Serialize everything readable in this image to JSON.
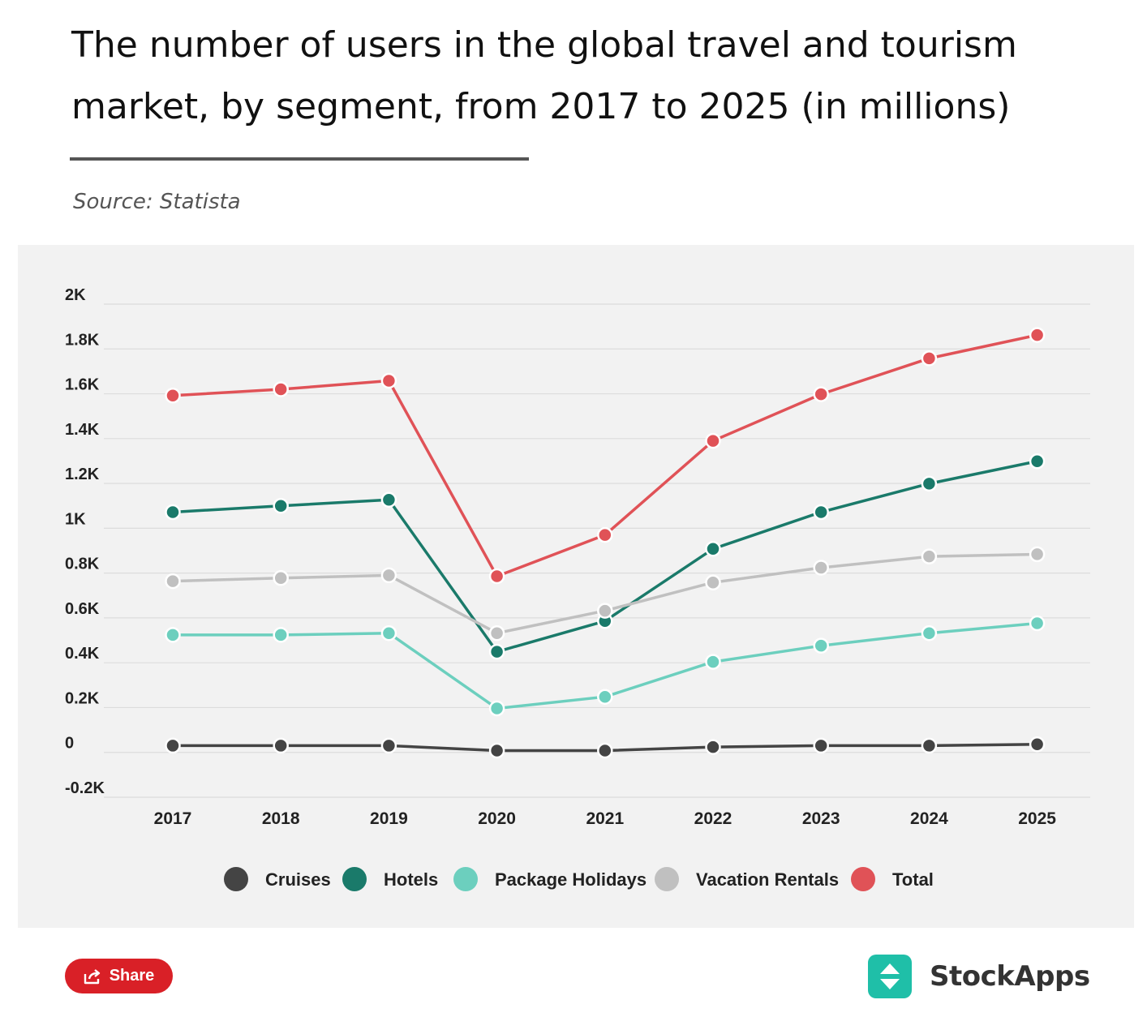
{
  "header": {
    "title": "The number of users in the global travel and tourism market, by segment, from 2017 to 2025 (in millions)",
    "source": "Source: Statista"
  },
  "chart_data": {
    "type": "line",
    "title": "The number of users in the global travel and tourism market, by segment, from 2017 to 2025 (in millions)",
    "xlabel": "",
    "ylabel": "",
    "categories": [
      "2017",
      "2018",
      "2019",
      "2020",
      "2021",
      "2022",
      "2023",
      "2024",
      "2025"
    ],
    "ylim": [
      -200,
      2000
    ],
    "yticks": [
      {
        "value": 2000,
        "label": "2K"
      },
      {
        "value": 1800,
        "label": "1.8K"
      },
      {
        "value": 1600,
        "label": "1.6K"
      },
      {
        "value": 1400,
        "label": "1.4K"
      },
      {
        "value": 1200,
        "label": "1.2K"
      },
      {
        "value": 1000,
        "label": "1K"
      },
      {
        "value": 800,
        "label": "0.8K"
      },
      {
        "value": 600,
        "label": "0.6K"
      },
      {
        "value": 400,
        "label": "0.4K"
      },
      {
        "value": 200,
        "label": "0.2K"
      },
      {
        "value": 0,
        "label": "0"
      },
      {
        "value": -200,
        "label": "-0.2K"
      }
    ],
    "grid": true,
    "legend_position": "bottom",
    "series": [
      {
        "name": "Cruises",
        "color": "#444444",
        "values": [
          30,
          30,
          30,
          8,
          8,
          24,
          30,
          30,
          36
        ]
      },
      {
        "name": "Hotels",
        "color": "#1a7a6a",
        "values": [
          1072,
          1100,
          1127,
          449,
          586,
          908,
          1072,
          1199,
          1299
        ]
      },
      {
        "name": "Package Holidays",
        "color": "#6ccfbe",
        "values": [
          524,
          524,
          532,
          196,
          248,
          404,
          476,
          532,
          576
        ]
      },
      {
        "name": "Vacation Rentals",
        "color": "#c0c0c0",
        "values": [
          764,
          778,
          790,
          532,
          632,
          758,
          824,
          874,
          884
        ]
      },
      {
        "name": "Total",
        "color": "#e05257",
        "values": [
          1592,
          1620,
          1658,
          786,
          970,
          1390,
          1598,
          1758,
          1862
        ]
      }
    ]
  },
  "footer": {
    "share_label": "Share",
    "brand_name": "StockApps",
    "share_icon": "share-icon",
    "brand_icon": "stockapps-logo-icon"
  }
}
